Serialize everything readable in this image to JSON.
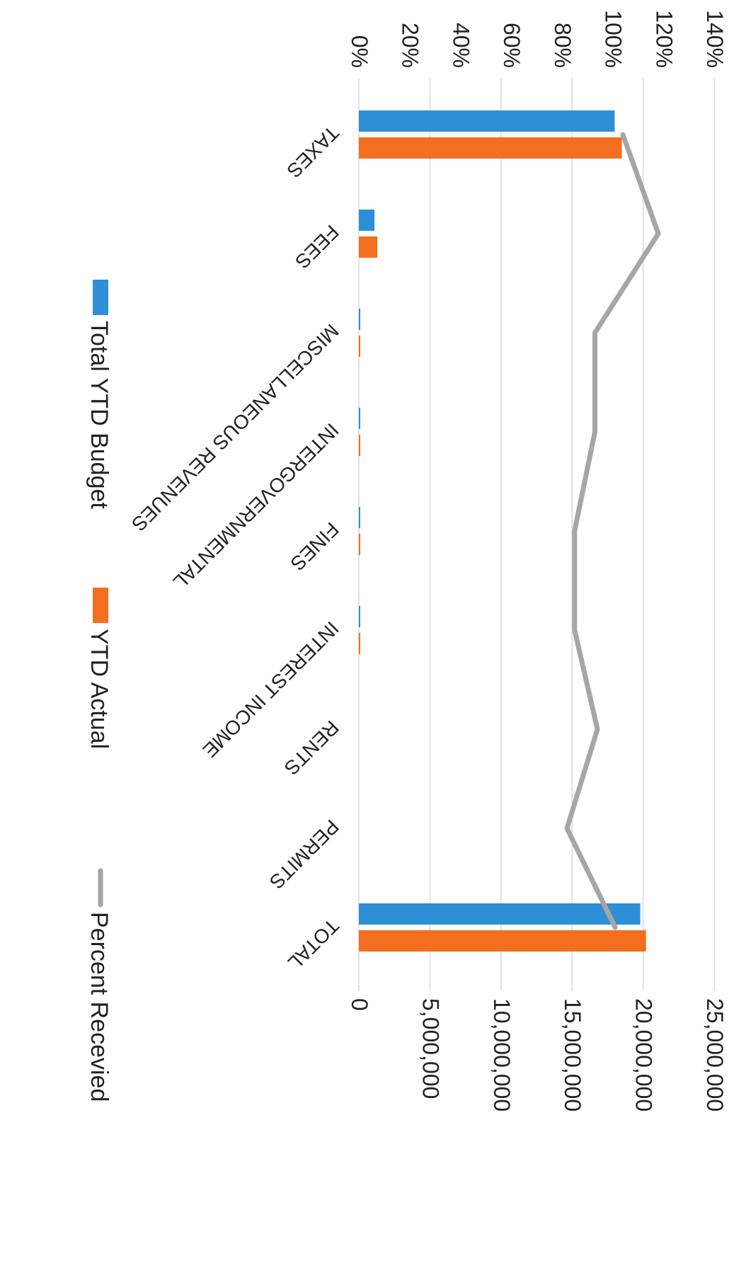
{
  "chart_data": {
    "type": "bar",
    "categories": [
      "TAXES",
      "FEES",
      "MISCELLANEOUS REVENUES",
      "INTERGOVERNMENTAL",
      "FINES",
      "INTEREST INCOME",
      "RENTS",
      "PERMITS",
      "TOTAL"
    ],
    "series": [
      {
        "name": "Total YTD Budget",
        "kind": "bar",
        "axis": "left",
        "color": "#2E8FD6",
        "values": [
          18000000,
          1100000,
          90000,
          90000,
          80000,
          5000,
          0,
          0,
          19800000
        ]
      },
      {
        "name": "YTD Actual",
        "kind": "bar",
        "axis": "left",
        "color": "#F36E1E",
        "values": [
          18500000,
          1300000,
          100000,
          100000,
          80000,
          20000,
          0,
          0,
          20200000
        ]
      },
      {
        "name": "Percent Recevied",
        "kind": "line",
        "axis": "right",
        "color": "#A6A6A6",
        "values": [
          104,
          118,
          93,
          93,
          85,
          85,
          94,
          82,
          101
        ]
      }
    ],
    "left_axis": {
      "min": 0,
      "max": 25000000,
      "step": 5000000,
      "ticks": [
        "0",
        "5,000,000",
        "10,000,000",
        "15,000,000",
        "20,000,000",
        "25,000,000"
      ]
    },
    "right_axis": {
      "min": 0,
      "max": 140,
      "step": 20,
      "ticks": [
        "0%",
        "20%",
        "40%",
        "60%",
        "80%",
        "100%",
        "120%",
        "140%"
      ]
    },
    "grid": true,
    "legend": "bottom",
    "rotation": "90deg-clockwise"
  }
}
